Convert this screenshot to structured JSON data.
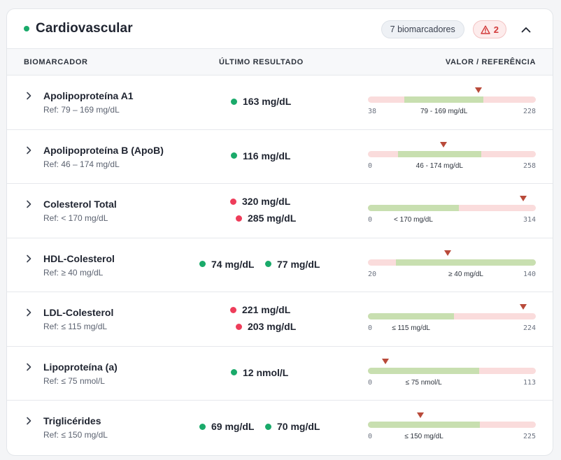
{
  "panel": {
    "title": "Cardiovascular",
    "status_color": "#1aaa6a",
    "count_badge": "7 biomarcadores",
    "alert_count": "2",
    "alert_icon": "warning-triangle-icon",
    "collapse_icon": "chevron-up-icon"
  },
  "columns": {
    "biomarker": "BIOMARCADOR",
    "last_result": "ÚLTIMO RESULTADO",
    "value_ref": "VALOR / REFERÊNCIA"
  },
  "colors": {
    "normal": "#1aaa6a",
    "abnormal": "#ee3d5a",
    "in_range": "#c8dfb0",
    "out_range": "#fadcdc",
    "marker": "#b94a3a"
  },
  "rows": [
    {
      "name": "Apolipoproteína A1",
      "ref": "Ref: 79 – 169 mg/dL",
      "layout": "single",
      "results": [
        {
          "value": "163 mg/dL",
          "status": "normal"
        }
      ],
      "bar": {
        "min": 38,
        "max": 228,
        "min_label": "38",
        "max_label": "228",
        "range_low": 79,
        "range_high": 169,
        "range_label": "79 - 169 mg/dL",
        "marker": 163
      }
    },
    {
      "name": "Apolipoproteína B (ApoB)",
      "ref": "Ref: 46 – 174 mg/dL",
      "layout": "single",
      "results": [
        {
          "value": "116 mg/dL",
          "status": "normal"
        }
      ],
      "bar": {
        "min": 0,
        "max": 258,
        "min_label": "0",
        "max_label": "258",
        "range_low": 46,
        "range_high": 174,
        "range_label": "46 - 174 mg/dL",
        "marker": 116
      }
    },
    {
      "name": "Colesterol Total",
      "ref": "Ref: < 170 mg/dL",
      "layout": "stacked",
      "results": [
        {
          "value": "320 mg/dL",
          "status": "abnormal"
        },
        {
          "value": "285 mg/dL",
          "status": "abnormal"
        }
      ],
      "bar": {
        "min": 0,
        "max": 314,
        "min_label": "0",
        "max_label": "314",
        "range_low": 0,
        "range_high": 170,
        "range_label": "< 170 mg/dL",
        "marker": 314
      }
    },
    {
      "name": "HDL-Colesterol",
      "ref": "Ref: ≥ 40 mg/dL",
      "layout": "inline",
      "results": [
        {
          "value": "74 mg/dL",
          "status": "normal"
        },
        {
          "value": "77 mg/dL",
          "status": "normal"
        }
      ],
      "bar": {
        "min": 20,
        "max": 140,
        "min_label": "20",
        "max_label": "140",
        "range_low": 40,
        "range_high": 140,
        "range_label": "≥ 40 mg/dL",
        "marker": 77
      }
    },
    {
      "name": "LDL-Colesterol",
      "ref": "Ref: ≤ 115 mg/dL",
      "layout": "stacked",
      "results": [
        {
          "value": "221 mg/dL",
          "status": "abnormal"
        },
        {
          "value": "203 mg/dL",
          "status": "abnormal"
        }
      ],
      "bar": {
        "min": 0,
        "max": 224,
        "min_label": "0",
        "max_label": "224",
        "range_low": 0,
        "range_high": 115,
        "range_label": "≤ 115 mg/dL",
        "marker": 221
      }
    },
    {
      "name": "Lipoproteína (a)",
      "ref": "Ref: ≤ 75 nmol/L",
      "layout": "single",
      "results": [
        {
          "value": "12 nmol/L",
          "status": "normal"
        }
      ],
      "bar": {
        "min": 0,
        "max": 113,
        "min_label": "0",
        "max_label": "113",
        "range_low": 0,
        "range_high": 75,
        "range_label": "≤ 75 nmol/L",
        "marker": 12
      }
    },
    {
      "name": "Triglicérides",
      "ref": "Ref: ≤ 150 mg/dL",
      "layout": "inline",
      "results": [
        {
          "value": "69 mg/dL",
          "status": "normal"
        },
        {
          "value": "70 mg/dL",
          "status": "normal"
        }
      ],
      "bar": {
        "min": 0,
        "max": 225,
        "min_label": "0",
        "max_label": "225",
        "range_low": 0,
        "range_high": 150,
        "range_label": "≤ 150 mg/dL",
        "marker": 70
      }
    }
  ]
}
